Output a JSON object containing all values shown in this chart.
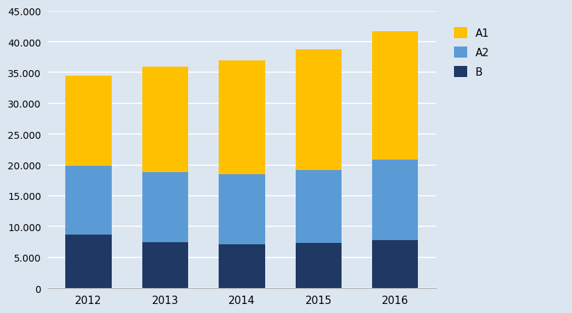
{
  "years": [
    "2012",
    "2013",
    "2014",
    "2015",
    "2016"
  ],
  "B": [
    8700,
    7500,
    7100,
    7300,
    7800
  ],
  "A2": [
    11100,
    11300,
    11400,
    11900,
    13000
  ],
  "A1": [
    14700,
    17200,
    18500,
    19600,
    20900
  ],
  "color_B": "#1f3864",
  "color_A2": "#5b9bd5",
  "color_A1": "#ffc000",
  "ylim": [
    0,
    45000
  ],
  "ytick_step": 5000,
  "plot_bg_color": "#dce6f1",
  "fig_bg_color": "#dce6f1",
  "legend_labels": [
    "A1",
    "A2",
    "B"
  ],
  "bar_width": 0.6
}
